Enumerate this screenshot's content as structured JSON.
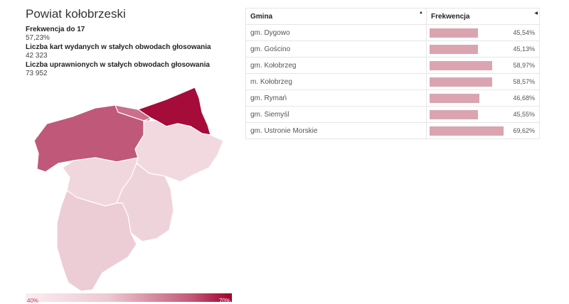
{
  "title": "Powiat kołobrzeski",
  "stats": [
    {
      "label": "Frekwencja do 17",
      "value": "57,23%"
    },
    {
      "label": "Liczba kart wydanych w stałych obwodach głosowania",
      "value": "42 323"
    },
    {
      "label": "Liczba uprawnionych w stałych obwodach głosowania",
      "value": "73 952"
    }
  ],
  "map": {
    "regions": [
      {
        "name": "gm. Kołobrzeg",
        "color": "#c0587a"
      },
      {
        "name": "gm. Ustronie Morskie",
        "color": "#a50c3a"
      },
      {
        "name": "m. Kołobrzeg",
        "color": "#cb6f8d"
      },
      {
        "name": "gm. Siemyśl",
        "color": "#efd3db"
      },
      {
        "name": "gm. Gościno",
        "color": "#f0d6dd"
      },
      {
        "name": "gm. Dygowo",
        "color": "#f1d9df"
      },
      {
        "name": "gm. Rymań",
        "color": "#ecccd5"
      }
    ]
  },
  "legend": {
    "min": "40%",
    "max": "70%"
  },
  "table": {
    "headers": {
      "gmina": "Gmina",
      "frekwencja": "Frekwencja"
    },
    "rows": [
      {
        "gmina": "gm. Dygowo",
        "frekwencja": "45,54%",
        "value": 45.54
      },
      {
        "gmina": "gm. Gościno",
        "frekwencja": "45,13%",
        "value": 45.13
      },
      {
        "gmina": "gm. Kołobrzeg",
        "frekwencja": "58,97%",
        "value": 58.97
      },
      {
        "gmina": "m. Kołobrzeg",
        "frekwencja": "58,57%",
        "value": 58.57
      },
      {
        "gmina": "gm. Rymań",
        "frekwencja": "46,68%",
        "value": 46.68
      },
      {
        "gmina": "gm. Siemyśl",
        "frekwencja": "45,55%",
        "value": 45.55
      },
      {
        "gmina": "gm. Ustronie Morskie",
        "frekwencja": "69,62%",
        "value": 69.62
      }
    ]
  },
  "colors": {
    "bar": "#dba4b1",
    "accent": "#a50c3a"
  }
}
